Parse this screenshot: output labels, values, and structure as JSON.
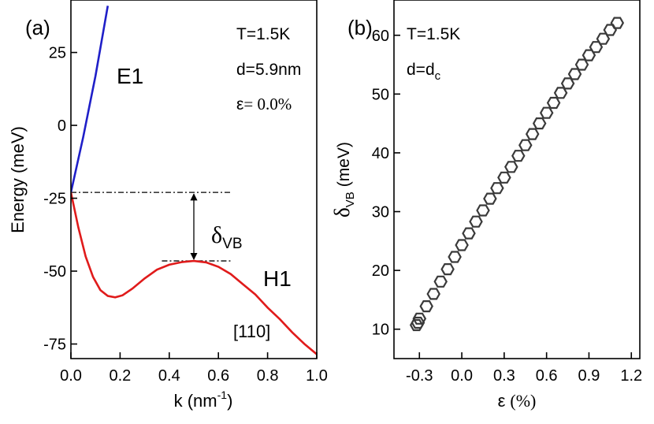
{
  "chart_data": [
    {
      "panel_label": "(a)",
      "type": "line",
      "xlabel_main": "k (nm",
      "xlabel_sup": "-1",
      "xlabel_end": ")",
      "ylabel": "Energy (meV)",
      "xlim": [
        0.0,
        1.0
      ],
      "ylim": [
        -80,
        43
      ],
      "xticks": [
        "0.0",
        "0.2",
        "0.4",
        "0.6",
        "0.8",
        "1.0"
      ],
      "xtick_values": [
        0.0,
        0.2,
        0.4,
        0.6,
        0.8,
        1.0
      ],
      "yticks": [
        "25",
        "0",
        "-25",
        "-50",
        "-75"
      ],
      "ytick_values": [
        25,
        0,
        -25,
        -50,
        -75
      ],
      "annotations": {
        "T": "T=1.5K",
        "d": "d=5.9nm",
        "eps_symbol": "ε",
        "eps_value": "= 0.0%",
        "direction": "[110]",
        "delta_main": "δ",
        "delta_sub": "VB"
      },
      "series": [
        {
          "name": "E1",
          "color": "#1f1fc8",
          "x": [
            0.0,
            0.025,
            0.05,
            0.075,
            0.1,
            0.125,
            0.15
          ],
          "y": [
            -23,
            -13.5,
            -4,
            6.5,
            17,
            29,
            41
          ]
        },
        {
          "name": "H1",
          "color": "#e01b1b",
          "x": [
            0.0,
            0.03,
            0.06,
            0.09,
            0.12,
            0.15,
            0.18,
            0.21,
            0.25,
            0.3,
            0.35,
            0.4,
            0.45,
            0.5,
            0.55,
            0.6,
            0.65,
            0.7,
            0.75,
            0.8,
            0.85,
            0.9,
            0.95,
            1.0
          ],
          "y": [
            -23,
            -35,
            -45,
            -52,
            -56.5,
            -58.5,
            -59,
            -58.3,
            -56,
            -52.5,
            -49.5,
            -47.8,
            -46.9,
            -46.5,
            -47,
            -48.5,
            -51,
            -54.5,
            -58,
            -62.5,
            -66.5,
            -71,
            -75,
            -78.5
          ]
        }
      ],
      "reference_lines": {
        "upper_level": -23,
        "upper_from": 0.0,
        "upper_to": 0.65,
        "lower_level": -46.5,
        "lower_from": 0.37,
        "lower_to": 0.65,
        "arrow_at_k": 0.5
      }
    },
    {
      "panel_label": "(b)",
      "type": "scatter",
      "xlabel_symbol": "ε",
      "xlabel_unit": "(%)",
      "ylabel_main": "δ",
      "ylabel_sub": "VB",
      "ylabel_unit": "(meV)",
      "xlim": [
        -0.48,
        1.26
      ],
      "ylim": [
        5,
        66
      ],
      "xticks": [
        "-0.3",
        "0.0",
        "0.3",
        "0.6",
        "0.9",
        "1.2"
      ],
      "xtick_values": [
        -0.3,
        0.0,
        0.3,
        0.6,
        0.9,
        1.2
      ],
      "yticks": [
        "10",
        "20",
        "30",
        "40",
        "50",
        "60"
      ],
      "ytick_values": [
        10,
        20,
        30,
        40,
        50,
        60
      ],
      "annotations": {
        "T": "T=1.5K",
        "d_main": "d=d",
        "d_sub": "c"
      },
      "marker": "hexagon",
      "x": [
        -0.32,
        -0.31,
        -0.3,
        -0.25,
        -0.2,
        -0.15,
        -0.1,
        -0.05,
        0.0,
        0.05,
        0.1,
        0.15,
        0.2,
        0.25,
        0.3,
        0.35,
        0.4,
        0.45,
        0.5,
        0.55,
        0.6,
        0.65,
        0.7,
        0.75,
        0.8,
        0.85,
        0.9,
        0.95,
        1.0,
        1.05,
        1.1
      ],
      "y": [
        10.7,
        11.1,
        11.8,
        13.9,
        16.0,
        18.1,
        20.2,
        22.3,
        24.3,
        26.3,
        28.3,
        30.2,
        32.2,
        34.0,
        35.8,
        37.6,
        39.5,
        41.3,
        43.2,
        45.0,
        46.8,
        48.5,
        50.2,
        51.8,
        53.4,
        55.0,
        56.6,
        58.0,
        59.4,
        60.9,
        62.1
      ]
    }
  ]
}
